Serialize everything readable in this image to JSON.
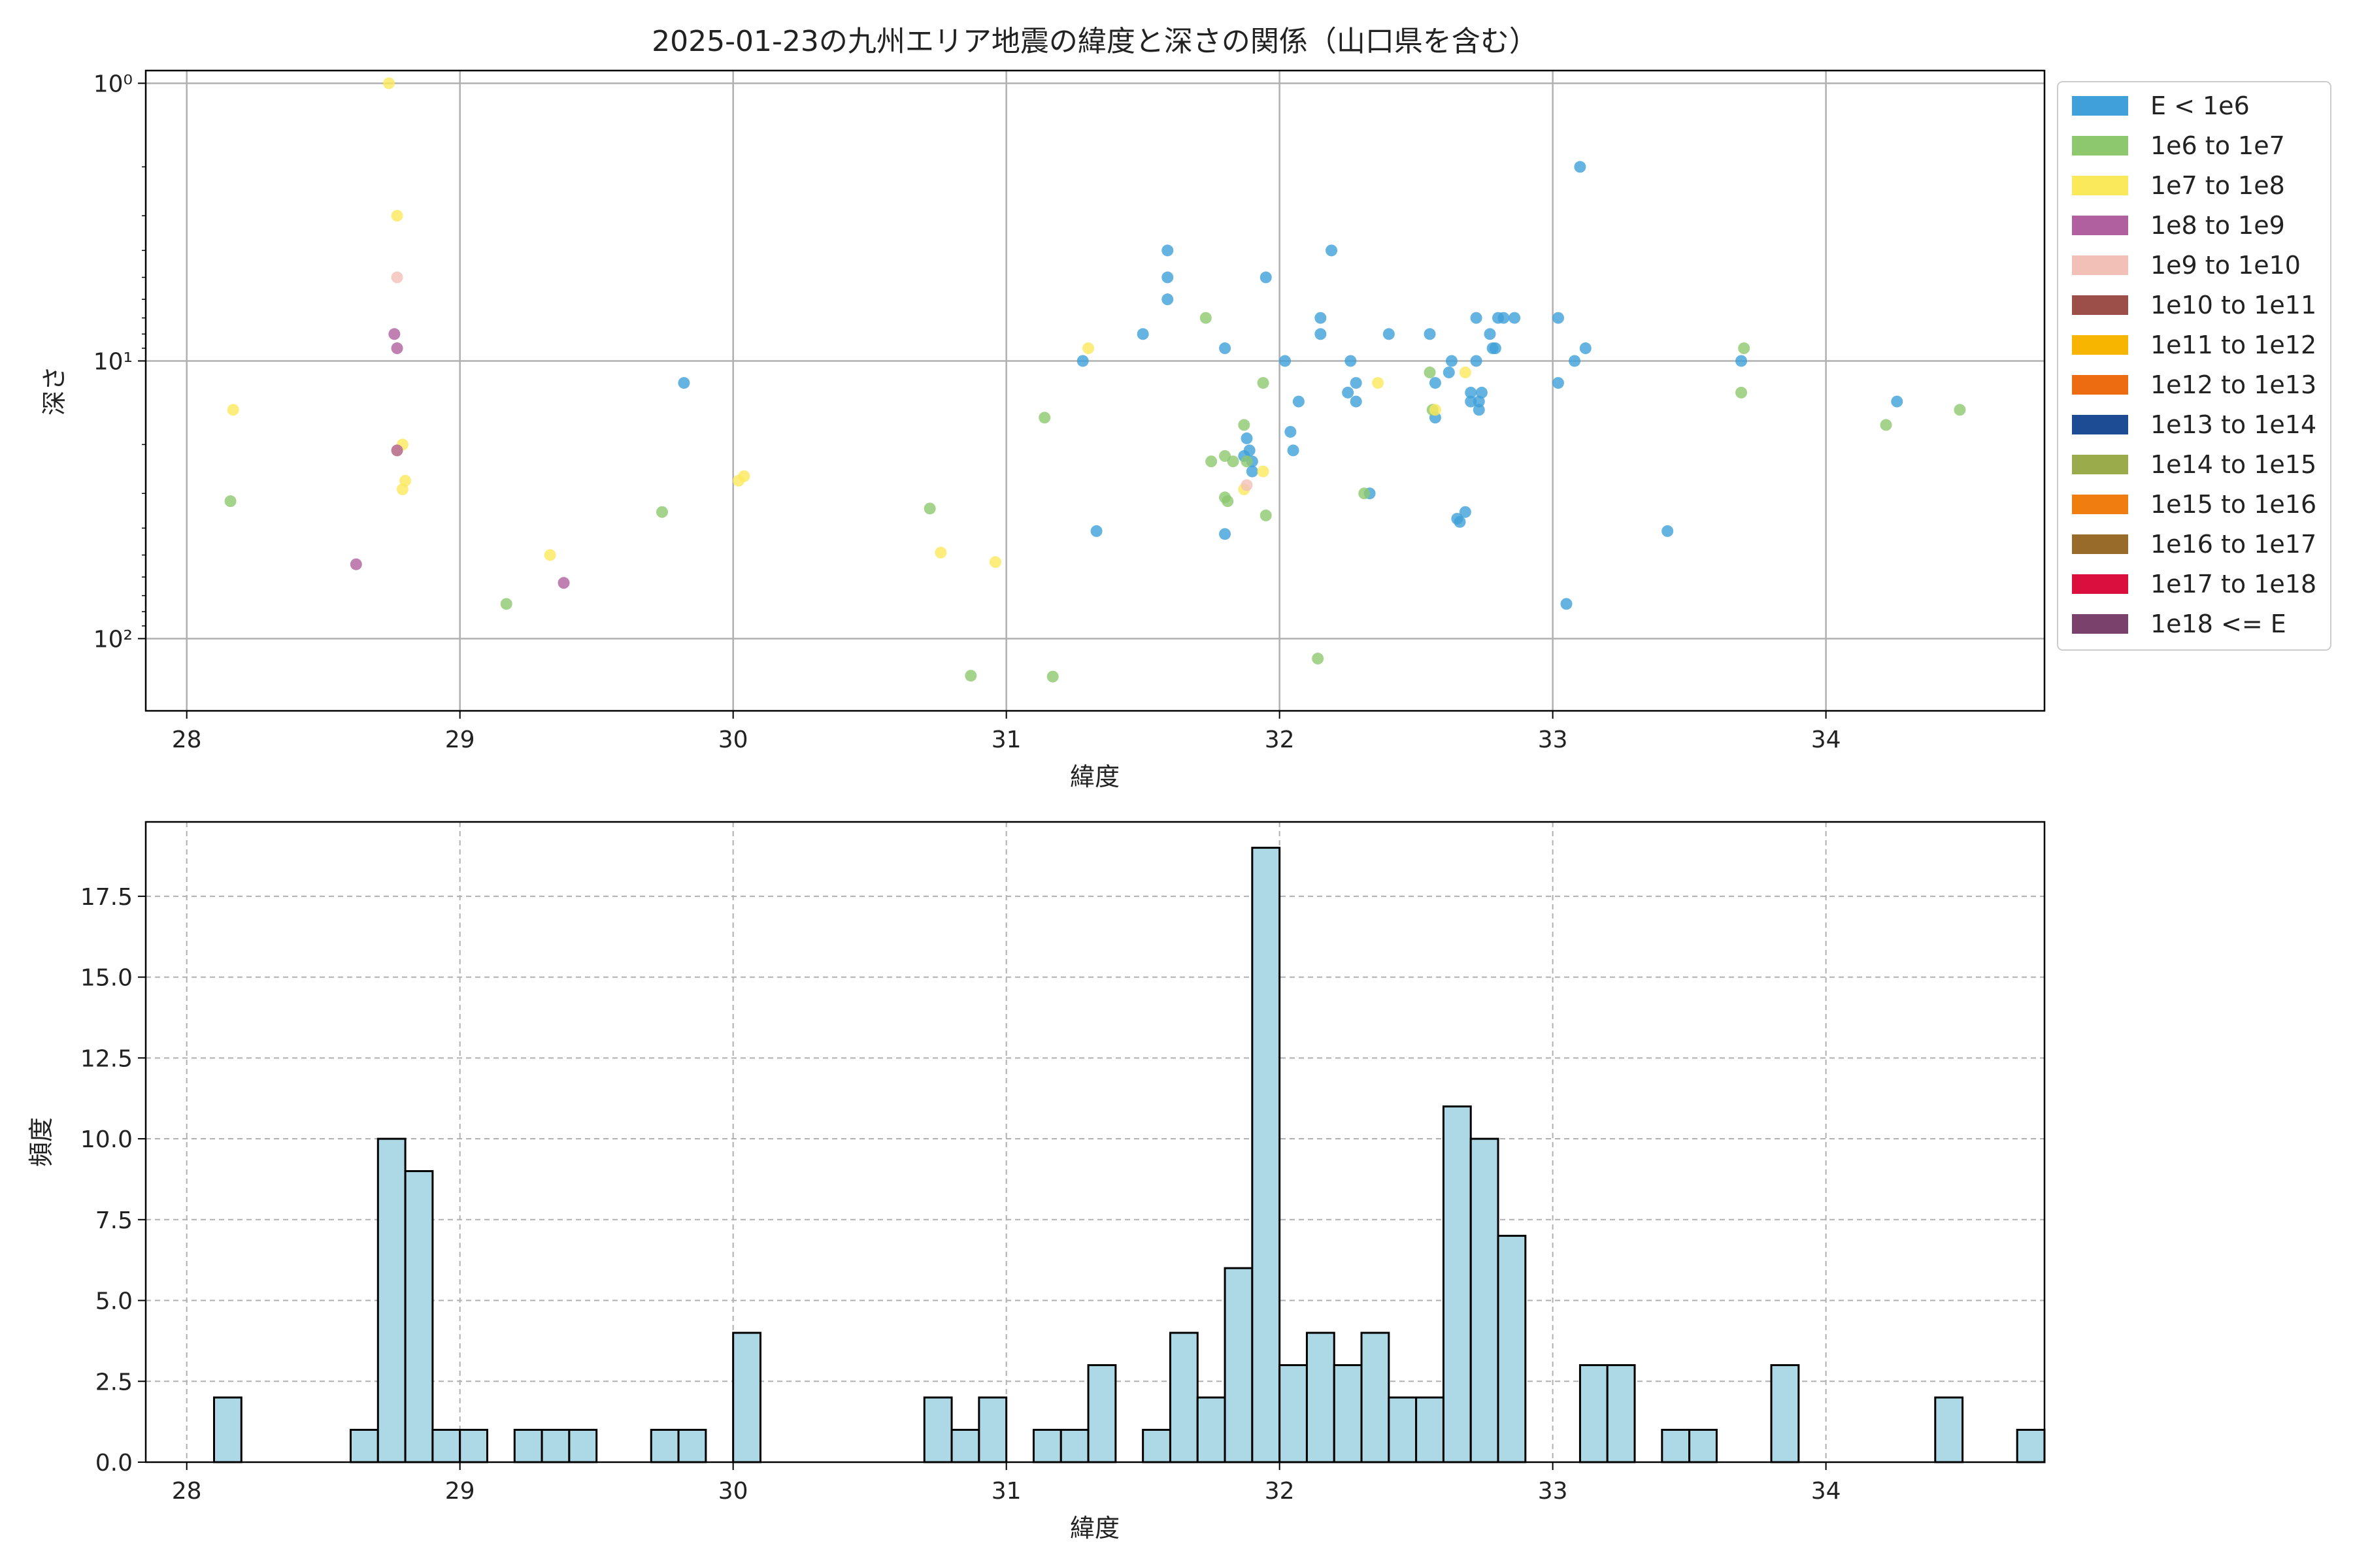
{
  "chart_data": [
    {
      "type": "scatter",
      "title": "2025-01-23の九州エリア地震の緯度と深さの関係（山口県を含む）",
      "xlabel": "緯度",
      "ylabel": "深さ",
      "xlim": [
        27.85,
        34.8
      ],
      "ylim": [
        182,
        0.9
      ],
      "y_scale": "log",
      "y_inverted": true,
      "grid": true,
      "x_ticks": [
        28,
        29,
        30,
        31,
        32,
        33,
        34
      ],
      "x_tick_labels": [
        "28",
        "29",
        "30",
        "31",
        "32",
        "33",
        "34"
      ],
      "y_ticks": [
        1,
        10,
        100
      ],
      "y_tick_labels": [
        "10⁰",
        "10¹",
        "10²"
      ],
      "legend_position": "outside-right",
      "legend": [
        {
          "label": "E < 1e6",
          "color": "#3fa0da"
        },
        {
          "label": "1e6 to 1e7",
          "color": "#8dc86e"
        },
        {
          "label": "1e7 to 1e8",
          "color": "#fbe95c"
        },
        {
          "label": "1e8 to 1e9",
          "color": "#b0609f"
        },
        {
          "label": "1e9 to 1e10",
          "color": "#f3c0b8"
        },
        {
          "label": "1e10 to 1e11",
          "color": "#9b4f48"
        },
        {
          "label": "1e11 to 1e12",
          "color": "#f7b500"
        },
        {
          "label": "1e12 to 1e13",
          "color": "#ed6c12"
        },
        {
          "label": "1e13 to 1e14",
          "color": "#1e4c94"
        },
        {
          "label": "1e14 to 1e15",
          "color": "#9aab4c"
        },
        {
          "label": "1e15 to 1e16",
          "color": "#ef7d0f"
        },
        {
          "label": "1e16 to 1e17",
          "color": "#986b2b"
        },
        {
          "label": "1e17 to 1e18",
          "color": "#db0f3e"
        },
        {
          "label": "1e18 <= E",
          "color": "#7a416d"
        }
      ],
      "series": [
        {
          "category": 0,
          "points": [
            [
              29.82,
              12
            ],
            [
              31.28,
              10
            ],
            [
              31.33,
              41
            ],
            [
              31.5,
              8
            ],
            [
              31.59,
              4
            ],
            [
              31.59,
              5
            ],
            [
              31.59,
              6
            ],
            [
              31.8,
              9
            ],
            [
              31.8,
              42
            ],
            [
              31.87,
              22
            ],
            [
              31.88,
              19
            ],
            [
              31.89,
              21
            ],
            [
              31.9,
              23
            ],
            [
              31.9,
              25
            ],
            [
              31.95,
              5
            ],
            [
              32.02,
              10
            ],
            [
              32.04,
              18
            ],
            [
              32.05,
              21
            ],
            [
              32.07,
              14
            ],
            [
              32.15,
              8
            ],
            [
              32.15,
              7
            ],
            [
              32.19,
              4
            ],
            [
              32.25,
              13
            ],
            [
              32.26,
              10
            ],
            [
              32.28,
              14
            ],
            [
              32.28,
              12
            ],
            [
              32.33,
              30
            ],
            [
              32.4,
              8
            ],
            [
              32.55,
              8
            ],
            [
              32.57,
              16
            ],
            [
              32.57,
              12
            ],
            [
              32.62,
              11
            ],
            [
              32.63,
              10
            ],
            [
              32.65,
              37
            ],
            [
              32.66,
              38
            ],
            [
              32.68,
              35
            ],
            [
              32.7,
              13
            ],
            [
              32.7,
              14
            ],
            [
              32.72,
              10
            ],
            [
              32.72,
              7
            ],
            [
              32.73,
              15
            ],
            [
              32.73,
              14
            ],
            [
              32.74,
              13
            ],
            [
              32.77,
              8
            ],
            [
              32.78,
              9
            ],
            [
              32.79,
              9
            ],
            [
              32.8,
              7
            ],
            [
              32.82,
              7
            ],
            [
              32.86,
              7
            ],
            [
              33.02,
              12
            ],
            [
              33.02,
              7
            ],
            [
              33.05,
              75
            ],
            [
              33.08,
              10
            ],
            [
              33.1,
              2
            ],
            [
              33.12,
              9
            ],
            [
              33.42,
              41
            ],
            [
              33.69,
              10
            ],
            [
              34.26,
              14
            ]
          ]
        },
        {
          "category": 1,
          "points": [
            [
              28.16,
              32
            ],
            [
              29.17,
              75
            ],
            [
              29.74,
              35
            ],
            [
              30.72,
              34
            ],
            [
              30.87,
              136
            ],
            [
              31.14,
              16
            ],
            [
              31.17,
              137
            ],
            [
              31.73,
              7
            ],
            [
              31.75,
              23
            ],
            [
              31.8,
              22
            ],
            [
              31.8,
              31
            ],
            [
              31.81,
              32
            ],
            [
              31.83,
              23
            ],
            [
              31.87,
              17
            ],
            [
              31.88,
              23
            ],
            [
              31.94,
              12
            ],
            [
              31.95,
              36
            ],
            [
              32.14,
              118
            ],
            [
              32.31,
              30
            ],
            [
              32.55,
              11
            ],
            [
              32.56,
              15
            ],
            [
              33.69,
              13
            ],
            [
              33.7,
              9
            ],
            [
              34.22,
              17
            ],
            [
              34.49,
              15
            ]
          ]
        },
        {
          "category": 2,
          "points": [
            [
              28.17,
              15
            ],
            [
              28.74,
              1
            ],
            [
              28.77,
              3
            ],
            [
              28.77,
              21
            ],
            [
              28.79,
              20
            ],
            [
              28.79,
              29
            ],
            [
              28.8,
              27
            ],
            [
              29.33,
              50
            ],
            [
              30.02,
              27
            ],
            [
              30.04,
              26
            ],
            [
              30.76,
              49
            ],
            [
              30.96,
              53
            ],
            [
              31.3,
              9
            ],
            [
              31.87,
              29
            ],
            [
              31.94,
              25
            ],
            [
              32.36,
              12
            ],
            [
              32.57,
              15
            ],
            [
              32.68,
              11
            ]
          ]
        },
        {
          "category": 3,
          "points": [
            [
              28.62,
              54
            ],
            [
              28.76,
              8
            ],
            [
              28.77,
              9
            ],
            [
              28.77,
              21
            ],
            [
              29.38,
              63
            ]
          ]
        },
        {
          "category": 4,
          "points": [
            [
              28.77,
              5
            ],
            [
              31.88,
              28
            ]
          ]
        }
      ]
    },
    {
      "type": "histogram",
      "xlabel": "緯度",
      "ylabel": "頻度",
      "xlim": [
        27.85,
        34.8
      ],
      "ylim": [
        0,
        19.8
      ],
      "grid": true,
      "grid_style": "dashed",
      "bar_color": "#add8e6",
      "edge_color": "#000000",
      "bin_start": 28.0,
      "bin_width": 0.1,
      "x_ticks": [
        28,
        29,
        30,
        31,
        32,
        33,
        34
      ],
      "x_tick_labels": [
        "28",
        "29",
        "30",
        "31",
        "32",
        "33",
        "34"
      ],
      "y_ticks": [
        0,
        2.5,
        5,
        7.5,
        10,
        12.5,
        15,
        17.5
      ],
      "y_tick_labels": [
        "0.0",
        "2.5",
        "5.0",
        "7.5",
        "10.0",
        "12.5",
        "15.0",
        "17.5"
      ],
      "counts": [
        0,
        2,
        0,
        0,
        0,
        0,
        1,
        10,
        9,
        1,
        1,
        0,
        1,
        1,
        1,
        0,
        0,
        1,
        1,
        0,
        4,
        0,
        0,
        0,
        0,
        0,
        0,
        2,
        1,
        2,
        0,
        1,
        1,
        3,
        0,
        1,
        4,
        2,
        6,
        19,
        3,
        4,
        3,
        4,
        2,
        2,
        11,
        10,
        7,
        0,
        0,
        3,
        3,
        0,
        1,
        1,
        0,
        0,
        3,
        0,
        0,
        0,
        0,
        0,
        2,
        0,
        0,
        1
      ]
    }
  ]
}
